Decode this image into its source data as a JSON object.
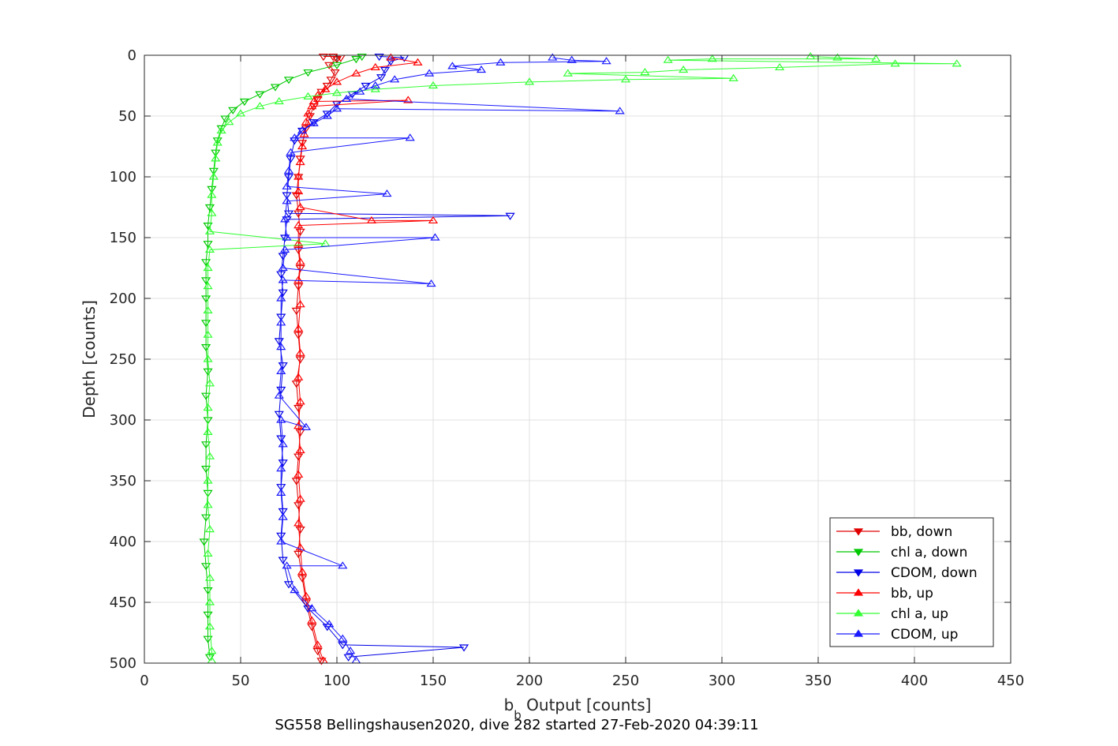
{
  "chart_data": {
    "type": "line",
    "title": "",
    "caption": "SG558 Bellingshausen2020, dive 282 started 27-Feb-2020 04:39:11",
    "xlabel_main": "b",
    "xlabel_sub": "b",
    "xlabel_rest": " Output [counts]",
    "ylabel": "Depth [counts]",
    "xlim": [
      0,
      450
    ],
    "ylim": [
      0,
      500
    ],
    "y_reversed": true,
    "grid": true,
    "legend_position": "bottom-right",
    "xticks": [
      "0",
      "50",
      "100",
      "150",
      "200",
      "250",
      "300",
      "350",
      "400",
      "450"
    ],
    "yticks": [
      "0",
      "50",
      "100",
      "150",
      "200",
      "250",
      "300",
      "350",
      "400",
      "450",
      "500"
    ],
    "colors": {
      "bb": "#ff0000",
      "chl": "#00e600",
      "cdom": "#0000ff"
    },
    "series": [
      {
        "name": "bb, down",
        "color": "#e00000",
        "marker": "down",
        "points": [
          [
            93,
            1
          ],
          [
            98,
            1
          ],
          [
            102,
            2
          ],
          [
            100,
            3
          ],
          [
            96,
            8
          ],
          [
            99,
            14
          ],
          [
            97,
            20
          ],
          [
            95,
            25
          ],
          [
            92,
            30
          ],
          [
            90,
            36
          ],
          [
            88,
            42
          ],
          [
            86,
            50
          ],
          [
            84,
            60
          ],
          [
            82,
            72
          ],
          [
            81,
            85
          ],
          [
            80,
            100
          ],
          [
            79,
            115
          ],
          [
            80,
            130
          ],
          [
            81,
            145
          ],
          [
            80,
            160
          ],
          [
            81,
            175
          ],
          [
            80,
            190
          ],
          [
            79,
            210
          ],
          [
            80,
            230
          ],
          [
            81,
            250
          ],
          [
            79,
            270
          ],
          [
            80,
            290
          ],
          [
            81,
            310
          ],
          [
            80,
            330
          ],
          [
            79,
            350
          ],
          [
            80,
            370
          ],
          [
            81,
            390
          ],
          [
            80,
            410
          ],
          [
            82,
            430
          ],
          [
            84,
            450
          ],
          [
            87,
            470
          ],
          [
            90,
            490
          ],
          [
            92,
            498
          ]
        ]
      },
      {
        "name": "chl a, down",
        "color": "#00c800",
        "marker": "down",
        "points": [
          [
            113,
            1
          ],
          [
            110,
            3
          ],
          [
            100,
            8
          ],
          [
            85,
            14
          ],
          [
            75,
            20
          ],
          [
            68,
            26
          ],
          [
            60,
            32
          ],
          [
            52,
            38
          ],
          [
            46,
            45
          ],
          [
            42,
            52
          ],
          [
            40,
            60
          ],
          [
            38,
            70
          ],
          [
            37,
            80
          ],
          [
            36,
            95
          ],
          [
            35,
            110
          ],
          [
            34,
            125
          ],
          [
            33,
            140
          ],
          [
            33,
            155
          ],
          [
            32,
            170
          ],
          [
            32,
            185
          ],
          [
            32,
            200
          ],
          [
            32,
            220
          ],
          [
            32,
            240
          ],
          [
            33,
            260
          ],
          [
            32,
            280
          ],
          [
            33,
            300
          ],
          [
            32,
            320
          ],
          [
            32,
            340
          ],
          [
            33,
            360
          ],
          [
            32,
            380
          ],
          [
            31,
            400
          ],
          [
            32,
            420
          ],
          [
            33,
            440
          ],
          [
            33,
            460
          ],
          [
            33,
            480
          ],
          [
            34,
            495
          ]
        ]
      },
      {
        "name": "CDOM, down",
        "color": "#0000e6",
        "marker": "down",
        "points": [
          [
            122,
            1
          ],
          [
            135,
            2
          ],
          [
            128,
            5
          ],
          [
            125,
            12
          ],
          [
            123,
            18
          ],
          [
            115,
            25
          ],
          [
            108,
            32
          ],
          [
            100,
            40
          ],
          [
            95,
            48
          ],
          [
            88,
            55
          ],
          [
            82,
            62
          ],
          [
            78,
            70
          ],
          [
            76,
            85
          ],
          [
            75,
            100
          ],
          [
            74,
            115
          ],
          [
            75,
            130
          ],
          [
            190,
            132
          ],
          [
            74,
            135
          ],
          [
            73,
            150
          ],
          [
            72,
            165
          ],
          [
            71,
            180
          ],
          [
            72,
            195
          ],
          [
            71,
            215
          ],
          [
            70,
            235
          ],
          [
            72,
            255
          ],
          [
            71,
            275
          ],
          [
            70,
            295
          ],
          [
            71,
            315
          ],
          [
            72,
            335
          ],
          [
            71,
            355
          ],
          [
            72,
            375
          ],
          [
            71,
            395
          ],
          [
            72,
            415
          ],
          [
            75,
            435
          ],
          [
            85,
            455
          ],
          [
            95,
            470
          ],
          [
            103,
            485
          ],
          [
            166,
            487
          ],
          [
            106,
            495
          ]
        ]
      },
      {
        "name": "bb, up",
        "color": "#ff0000",
        "marker": "up",
        "points": [
          [
            128,
            2
          ],
          [
            142,
            6
          ],
          [
            120,
            10
          ],
          [
            110,
            15
          ],
          [
            100,
            22
          ],
          [
            94,
            28
          ],
          [
            90,
            33
          ],
          [
            88,
            38
          ],
          [
            137,
            37
          ],
          [
            87,
            42
          ],
          [
            85,
            48
          ],
          [
            84,
            55
          ],
          [
            83,
            65
          ],
          [
            82,
            75
          ],
          [
            81,
            88
          ],
          [
            80,
            100
          ],
          [
            80,
            112
          ],
          [
            81,
            125
          ],
          [
            118,
            136
          ],
          [
            150,
            136
          ],
          [
            80,
            140
          ],
          [
            80,
            155
          ],
          [
            81,
            170
          ],
          [
            80,
            185
          ],
          [
            81,
            205
          ],
          [
            80,
            225
          ],
          [
            81,
            245
          ],
          [
            80,
            265
          ],
          [
            81,
            285
          ],
          [
            80,
            305
          ],
          [
            81,
            325
          ],
          [
            80,
            345
          ],
          [
            81,
            365
          ],
          [
            80,
            385
          ],
          [
            81,
            405
          ],
          [
            82,
            425
          ],
          [
            84,
            445
          ],
          [
            87,
            465
          ],
          [
            90,
            485
          ],
          [
            93,
            498
          ]
        ]
      },
      {
        "name": "chl a, up",
        "color": "#33ff33",
        "marker": "up",
        "points": [
          [
            346,
            1
          ],
          [
            360,
            2
          ],
          [
            380,
            3
          ],
          [
            295,
            3
          ],
          [
            272,
            4
          ],
          [
            422,
            7
          ],
          [
            390,
            7
          ],
          [
            330,
            10
          ],
          [
            280,
            12
          ],
          [
            260,
            14
          ],
          [
            220,
            15
          ],
          [
            306,
            19
          ],
          [
            250,
            20
          ],
          [
            200,
            22
          ],
          [
            150,
            25
          ],
          [
            120,
            28
          ],
          [
            100,
            31
          ],
          [
            85,
            34
          ],
          [
            70,
            38
          ],
          [
            60,
            42
          ],
          [
            50,
            48
          ],
          [
            44,
            55
          ],
          [
            40,
            62
          ],
          [
            38,
            72
          ],
          [
            37,
            85
          ],
          [
            36,
            100
          ],
          [
            35,
            115
          ],
          [
            35,
            130
          ],
          [
            34,
            145
          ],
          [
            94,
            155
          ],
          [
            34,
            160
          ],
          [
            33,
            175
          ],
          [
            33,
            190
          ],
          [
            33,
            210
          ],
          [
            33,
            230
          ],
          [
            33,
            250
          ],
          [
            34,
            270
          ],
          [
            33,
            290
          ],
          [
            33,
            310
          ],
          [
            34,
            330
          ],
          [
            33,
            350
          ],
          [
            33,
            370
          ],
          [
            34,
            390
          ],
          [
            33,
            410
          ],
          [
            34,
            430
          ],
          [
            34,
            450
          ],
          [
            34,
            470
          ],
          [
            35,
            490
          ],
          [
            35,
            498
          ]
        ]
      },
      {
        "name": "CDOM, up",
        "color": "#1a1aff",
        "marker": "up",
        "points": [
          [
            212,
            2
          ],
          [
            222,
            4
          ],
          [
            240,
            5
          ],
          [
            185,
            6
          ],
          [
            160,
            9
          ],
          [
            175,
            12
          ],
          [
            148,
            15
          ],
          [
            130,
            20
          ],
          [
            120,
            25
          ],
          [
            112,
            30
          ],
          [
            105,
            36
          ],
          [
            247,
            46
          ],
          [
            100,
            44
          ],
          [
            95,
            50
          ],
          [
            88,
            56
          ],
          [
            82,
            62
          ],
          [
            78,
            68
          ],
          [
            138,
            68
          ],
          [
            76,
            80
          ],
          [
            75,
            95
          ],
          [
            74,
            108
          ],
          [
            126,
            114
          ],
          [
            74,
            120
          ],
          [
            73,
            135
          ],
          [
            74,
            150
          ],
          [
            151,
            150
          ],
          [
            73,
            160
          ],
          [
            72,
            175
          ],
          [
            149,
            188
          ],
          [
            72,
            185
          ],
          [
            71,
            200
          ],
          [
            71,
            220
          ],
          [
            71,
            240
          ],
          [
            71,
            260
          ],
          [
            70,
            280
          ],
          [
            84,
            306
          ],
          [
            71,
            300
          ],
          [
            72,
            320
          ],
          [
            71,
            340
          ],
          [
            71,
            360
          ],
          [
            72,
            380
          ],
          [
            71,
            400
          ],
          [
            103,
            420
          ],
          [
            74,
            420
          ],
          [
            78,
            440
          ],
          [
            87,
            455
          ],
          [
            96,
            468
          ],
          [
            103,
            480
          ],
          [
            107,
            490
          ],
          [
            110,
            498
          ]
        ]
      }
    ]
  }
}
